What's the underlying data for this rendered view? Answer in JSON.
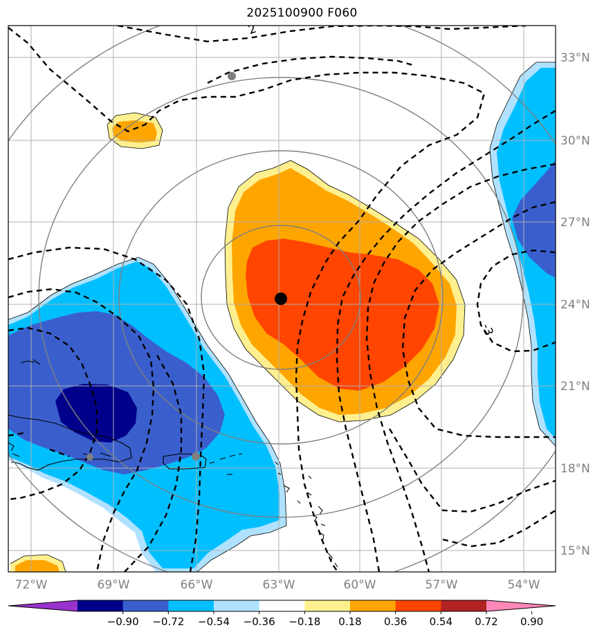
{
  "title": "2025100900 F060",
  "colors": {
    "less_than_neg090": "#9932cc",
    "neg090_neg072": "#00008b",
    "neg072_neg054": "#3a5fcd",
    "neg054_neg036": "#00bfff",
    "neg036_neg018": "#b0e2ff",
    "neg018_018": "#ffffff",
    "pos018_036": "#fff08f",
    "pos036_054": "#ffa500",
    "pos054_072": "#ff4500",
    "pos072_090": "#b22222",
    "greater_than_090": "#ff88b8",
    "range_rings": "#808080",
    "gridlines": "#b0b0b0",
    "contours": "#000000"
  },
  "longitude_labels": [
    "72°W",
    "69°W",
    "66°W",
    "63°W",
    "60°W",
    "57°W",
    "54°W"
  ],
  "latitude_labels": [
    "33°N",
    "30°N",
    "27°N",
    "24°N",
    "21°N",
    "18°N",
    "15°N"
  ],
  "contour_labels": [
    "2",
    "-3"
  ],
  "colorbar": {
    "ticks": [
      "−0.90",
      "−0.72",
      "−0.54",
      "−0.36",
      "−0.18",
      "0.18",
      "0.36",
      "0.54",
      "0.72",
      "0.90"
    ],
    "colors": [
      "#9932cc",
      "#00008b",
      "#3a5fcd",
      "#00bfff",
      "#b0e2ff",
      "#ffffff",
      "#fff08f",
      "#ffa500",
      "#ff4500",
      "#b22222",
      "#ff88b8"
    ]
  },
  "markers": {
    "center": "storm-center",
    "stations": [
      "station-1",
      "station-2",
      "station-3"
    ]
  }
}
